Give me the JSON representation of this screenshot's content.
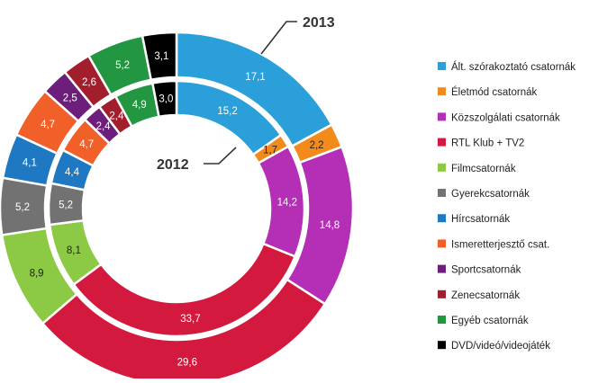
{
  "chart_data": {
    "type": "pie",
    "subtype": "donut-nested",
    "categories": [
      "Ált. szórakoztató csatornák",
      "Életmód csatornák",
      "Közszolgálati csatornák",
      "RTL Klub + TV2",
      "Filmcsatornák",
      "Gyerekcsatornák",
      "Hírcsatornák",
      "Ismeretterjesztő csat.",
      "Sportcsatornák",
      "Zenecsatornák",
      "Egyéb csatornák",
      "DVD/videó/videojáték"
    ],
    "colors": [
      "#2b9fda",
      "#f28a1c",
      "#b42fb5",
      "#d31a3e",
      "#8cc944",
      "#727272",
      "#1f78c2",
      "#f2602a",
      "#6d1e7b",
      "#a31e2c",
      "#229640",
      "#000000"
    ],
    "series": [
      {
        "name": "2013",
        "ring": "outer",
        "values": [
          17.1,
          2.2,
          14.8,
          29.6,
          8.9,
          5.2,
          4.1,
          4.7,
          2.5,
          2.6,
          5.2,
          3.1
        ],
        "labels": [
          "17,1",
          "2,2",
          "14,8",
          "29,6",
          "8,9",
          "5,2",
          "4,1",
          "4,7",
          "2,5",
          "2,6",
          "5,2",
          "3,1"
        ]
      },
      {
        "name": "2012",
        "ring": "inner",
        "values": [
          15.2,
          1.7,
          14.2,
          33.7,
          8.1,
          5.2,
          4.4,
          4.7,
          2.4,
          2.4,
          4.9,
          3.0
        ],
        "labels": [
          "15,2",
          "1,7",
          "14,2",
          "33,7",
          "8,1",
          "5,2",
          "4,4",
          "4,7",
          "2,4",
          "2,4",
          "4,9",
          "3,0"
        ]
      }
    ],
    "legend_position": "right"
  }
}
